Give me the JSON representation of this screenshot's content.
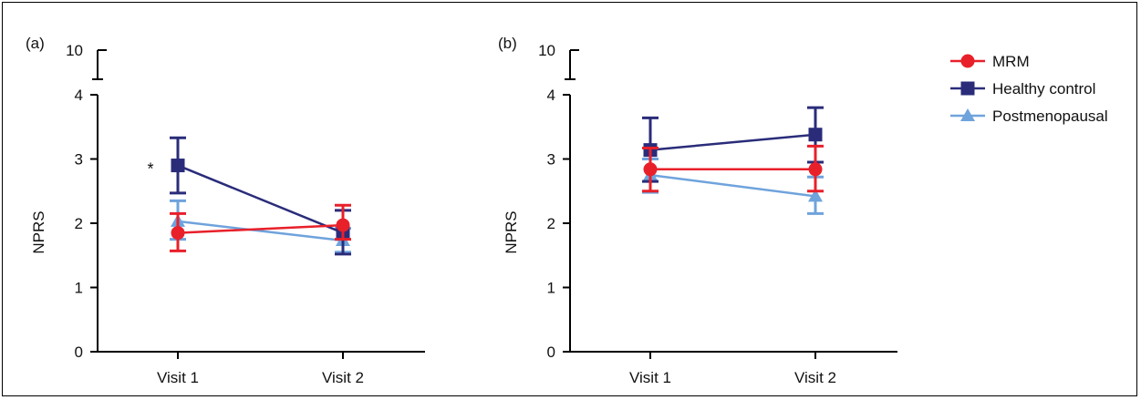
{
  "legend": {
    "placement": "top-right",
    "items": [
      {
        "label": "MRM",
        "color": "#e8202a",
        "marker": "circle"
      },
      {
        "label": "Healthy control",
        "color": "#2a2c7a",
        "marker": "square"
      },
      {
        "label": "Postmenopausal",
        "color": "#6fa3dc",
        "marker": "triangle"
      }
    ]
  },
  "chart_data": [
    {
      "type": "line",
      "panel_label": "(a)",
      "ylabel": "NPRS",
      "xlabel": "",
      "categories": [
        "Visit 1",
        "Visit 2"
      ],
      "ylim": [
        0,
        4
      ],
      "yticks": [
        "0",
        "1",
        "2",
        "3",
        "4"
      ],
      "axis_break_top_label": "10",
      "annotation": {
        "text": "*",
        "category": "Visit 1",
        "y": 2.9
      },
      "grid": false,
      "series": [
        {
          "name": "MRM",
          "color": "#e8202a",
          "marker": "circle",
          "values": [
            1.85,
            1.97
          ],
          "err_low": [
            1.57,
            1.75
          ],
          "err_high": [
            2.15,
            2.28
          ]
        },
        {
          "name": "Healthy control",
          "color": "#2a2c7a",
          "marker": "square",
          "values": [
            2.9,
            1.85
          ],
          "err_low": [
            2.47,
            1.52
          ],
          "err_high": [
            3.33,
            2.2
          ]
        },
        {
          "name": "Postmenopausal",
          "color": "#6fa3dc",
          "marker": "triangle",
          "values": [
            2.03,
            1.73
          ],
          "err_low": [
            1.75,
            1.55
          ],
          "err_high": [
            2.35,
            1.92
          ]
        }
      ]
    },
    {
      "type": "line",
      "panel_label": "(b)",
      "ylabel": "NPRS",
      "xlabel": "",
      "categories": [
        "Visit 1",
        "Visit 2"
      ],
      "ylim": [
        0,
        4
      ],
      "yticks": [
        "0",
        "1",
        "2",
        "3",
        "4"
      ],
      "axis_break_top_label": "10",
      "grid": false,
      "series": [
        {
          "name": "MRM",
          "color": "#e8202a",
          "marker": "circle",
          "values": [
            2.84,
            2.84
          ],
          "err_low": [
            2.5,
            2.5
          ],
          "err_high": [
            3.17,
            3.2
          ]
        },
        {
          "name": "Healthy control",
          "color": "#2a2c7a",
          "marker": "square",
          "values": [
            3.14,
            3.38
          ],
          "err_low": [
            2.65,
            2.95
          ],
          "err_high": [
            3.64,
            3.8
          ]
        },
        {
          "name": "Postmenopausal",
          "color": "#6fa3dc",
          "marker": "triangle",
          "values": [
            2.75,
            2.42
          ],
          "err_low": [
            2.48,
            2.15
          ],
          "err_high": [
            3.0,
            2.72
          ]
        }
      ]
    }
  ]
}
